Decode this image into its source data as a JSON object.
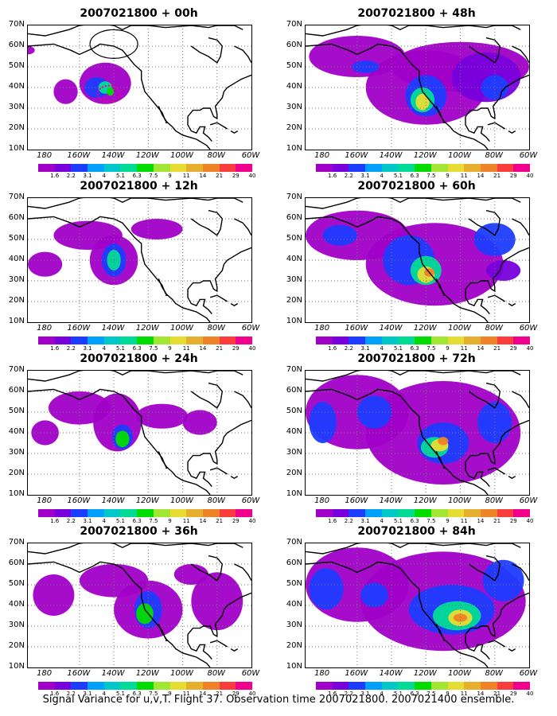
{
  "figure": {
    "caption": "Signal Variance for u,v,T. Flight 37. Observation time 2007021800. 2007021400 ensemble.",
    "lat_labels": [
      "70N",
      "60N",
      "50N",
      "40N",
      "30N",
      "20N",
      "10N"
    ],
    "lon_labels": [
      "180",
      "160W",
      "140W",
      "120W",
      "100W",
      "80W",
      "60W"
    ],
    "colorbar": {
      "labels": [
        "1.6",
        "2.2",
        "3.1",
        "4",
        "5.1",
        "6.3",
        "7.5",
        "9",
        "11",
        "14",
        "21",
        "29",
        "40"
      ],
      "colors": [
        "#a000c8",
        "#7800dc",
        "#1e3cff",
        "#00a0ff",
        "#00c8c8",
        "#00dc96",
        "#00dc00",
        "#a0e632",
        "#e6dc32",
        "#e6af2d",
        "#f08228",
        "#fa3c3c",
        "#f0008c"
      ]
    },
    "panels": [
      {
        "title": "2007021800 + 00h"
      },
      {
        "title": "2007021800 + 48h"
      },
      {
        "title": "2007021800 + 12h"
      },
      {
        "title": "2007021800 + 60h"
      },
      {
        "title": "2007021800 + 24h"
      },
      {
        "title": "2007021800 + 72h"
      },
      {
        "title": "2007021800 + 36h"
      },
      {
        "title": "2007021800 + 84h"
      }
    ]
  }
}
